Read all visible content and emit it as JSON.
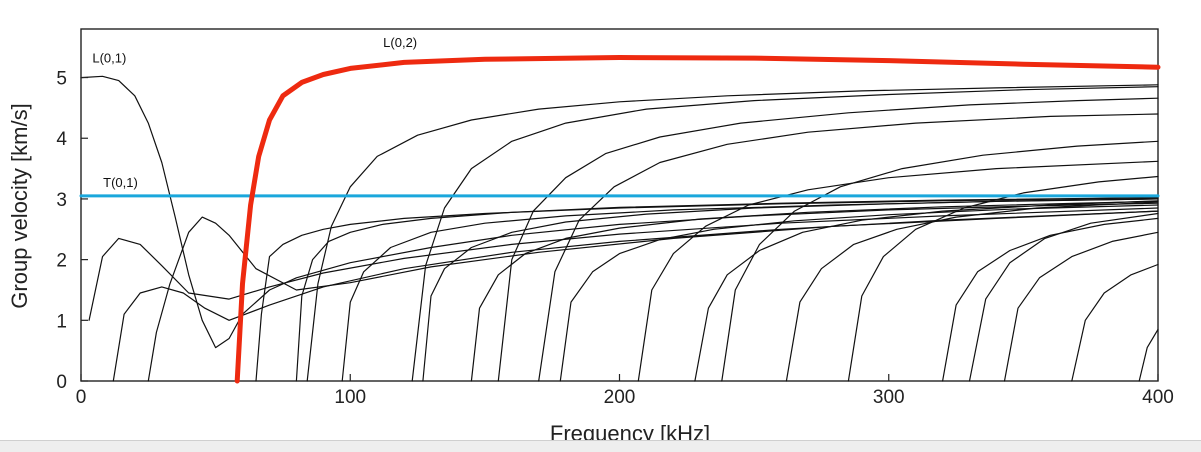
{
  "chart_data": {
    "type": "line",
    "xlabel": "Frequency [kHz]",
    "ylabel": "Group velocity [km/s]",
    "xlim": [
      0,
      400
    ],
    "ylim": [
      0,
      5.8
    ],
    "xticks": [
      0,
      100,
      200,
      300,
      400
    ],
    "yticks": [
      0,
      1,
      2,
      3,
      4,
      5
    ],
    "grid": false,
    "colors": {
      "L(0,2)": "#ee2a10",
      "T(0,1)": "#1aa7dc",
      "other_modes": "#111111"
    },
    "series": [
      {
        "name": "L(0,1)",
        "x": [
          0,
          8,
          14,
          20,
          25,
          30,
          35,
          40,
          45,
          50,
          55,
          60,
          70,
          80,
          100,
          130,
          160,
          200,
          250,
          300,
          350,
          400
        ],
        "y": [
          5.0,
          5.02,
          4.95,
          4.7,
          4.25,
          3.6,
          2.7,
          1.75,
          1.0,
          0.55,
          0.7,
          1.1,
          1.5,
          1.7,
          1.95,
          2.2,
          2.4,
          2.58,
          2.72,
          2.82,
          2.88,
          2.93
        ]
      },
      {
        "name": "L(0,2)",
        "x": [
          58,
          60,
          63,
          66,
          70,
          75,
          82,
          90,
          100,
          120,
          150,
          200,
          250,
          300,
          350,
          400
        ],
        "y": [
          0,
          1.6,
          2.9,
          3.7,
          4.3,
          4.7,
          4.92,
          5.05,
          5.15,
          5.25,
          5.3,
          5.33,
          5.32,
          5.28,
          5.22,
          5.17
        ]
      },
      {
        "name": "T(0,1)",
        "x": [
          0,
          400
        ],
        "y": [
          3.05,
          3.05
        ]
      },
      {
        "x": [
          3,
          8,
          14,
          22,
          30,
          40,
          55,
          70,
          90,
          120,
          160,
          200,
          260,
          320,
          400
        ],
        "y": [
          1.0,
          2.05,
          2.35,
          2.25,
          1.9,
          1.45,
          1.35,
          1.55,
          1.78,
          2.02,
          2.25,
          2.42,
          2.6,
          2.72,
          2.85
        ]
      },
      {
        "x": [
          12,
          16,
          22,
          30,
          38,
          46,
          55,
          70,
          90,
          120,
          160,
          200,
          260,
          320,
          400
        ],
        "y": [
          0,
          1.1,
          1.45,
          1.55,
          1.45,
          1.2,
          1.0,
          1.25,
          1.55,
          1.85,
          2.12,
          2.3,
          2.5,
          2.65,
          2.8
        ]
      },
      {
        "x": [
          25,
          28,
          33,
          40,
          45,
          50,
          55,
          65,
          80,
          100,
          130,
          170,
          220,
          280,
          340,
          400
        ],
        "y": [
          0,
          0.8,
          1.6,
          2.45,
          2.7,
          2.6,
          2.4,
          1.85,
          1.5,
          1.62,
          1.88,
          2.12,
          2.35,
          2.55,
          2.68,
          2.8
        ]
      },
      {
        "x": [
          65,
          67,
          70,
          75,
          82,
          90,
          100,
          120,
          150,
          200,
          260,
          320,
          400
        ],
        "y": [
          0,
          1.1,
          2.05,
          2.25,
          2.4,
          2.5,
          2.58,
          2.68,
          2.76,
          2.85,
          2.92,
          2.97,
          3.02
        ]
      },
      {
        "x": [
          80,
          82,
          86,
          92,
          100,
          112,
          130,
          160,
          200,
          260,
          320,
          400
        ],
        "y": [
          0,
          1.4,
          2.0,
          2.3,
          2.45,
          2.58,
          2.68,
          2.78,
          2.86,
          2.93,
          2.98,
          3.02
        ]
      },
      {
        "x": [
          97,
          100,
          105,
          115,
          130,
          150,
          180,
          220,
          280,
          340,
          400
        ],
        "y": [
          0,
          1.3,
          1.8,
          2.2,
          2.45,
          2.6,
          2.72,
          2.82,
          2.9,
          2.96,
          3.0
        ]
      },
      {
        "x": [
          84,
          88,
          93,
          100,
          110,
          125,
          145,
          170,
          200,
          240,
          290,
          340,
          400
        ],
        "y": [
          0,
          1.6,
          2.55,
          3.2,
          3.7,
          4.05,
          4.3,
          4.48,
          4.6,
          4.7,
          4.78,
          4.83,
          4.88
        ]
      },
      {
        "x": [
          127,
          130,
          135,
          145,
          160,
          180,
          210,
          250,
          300,
          350,
          400
        ],
        "y": [
          0,
          1.4,
          1.85,
          2.2,
          2.45,
          2.62,
          2.75,
          2.85,
          2.92,
          2.97,
          3.0
        ]
      },
      {
        "x": [
          123,
          128,
          135,
          145,
          160,
          180,
          210,
          250,
          300,
          350,
          400
        ],
        "y": [
          0,
          1.9,
          2.85,
          3.5,
          3.95,
          4.25,
          4.48,
          4.62,
          4.72,
          4.8,
          4.85
        ]
      },
      {
        "x": [
          145,
          148,
          155,
          165,
          180,
          200,
          230,
          270,
          320,
          370,
          400
        ],
        "y": [
          0,
          1.2,
          1.75,
          2.1,
          2.35,
          2.52,
          2.67,
          2.78,
          2.87,
          2.93,
          2.96
        ]
      },
      {
        "x": [
          155,
          160,
          168,
          180,
          195,
          215,
          245,
          285,
          330,
          370,
          400
        ],
        "y": [
          0,
          2.0,
          2.8,
          3.35,
          3.75,
          4.02,
          4.25,
          4.42,
          4.55,
          4.62,
          4.66
        ]
      },
      {
        "x": [
          178,
          182,
          190,
          200,
          215,
          235,
          265,
          300,
          345,
          400
        ],
        "y": [
          0,
          1.3,
          1.8,
          2.1,
          2.33,
          2.5,
          2.64,
          2.74,
          2.83,
          2.9
        ]
      },
      {
        "x": [
          170,
          176,
          185,
          198,
          215,
          240,
          270,
          310,
          360,
          400
        ],
        "y": [
          0,
          1.8,
          2.65,
          3.2,
          3.6,
          3.9,
          4.1,
          4.25,
          4.36,
          4.4
        ]
      },
      {
        "x": [
          207,
          212,
          220,
          232,
          248,
          270,
          300,
          340,
          400
        ],
        "y": [
          0,
          1.5,
          2.1,
          2.55,
          2.9,
          3.15,
          3.35,
          3.5,
          3.62
        ]
      },
      {
        "x": [
          228,
          233,
          240,
          252,
          268,
          290,
          320,
          360,
          400
        ],
        "y": [
          0,
          1.2,
          1.75,
          2.15,
          2.45,
          2.65,
          2.8,
          2.9,
          2.97
        ]
      },
      {
        "x": [
          238,
          243,
          252,
          265,
          282,
          305,
          335,
          370,
          400
        ],
        "y": [
          0,
          1.5,
          2.25,
          2.8,
          3.2,
          3.5,
          3.72,
          3.87,
          3.95
        ]
      },
      {
        "x": [
          262,
          267,
          275,
          287,
          303,
          325,
          355,
          400
        ],
        "y": [
          0,
          1.3,
          1.85,
          2.25,
          2.5,
          2.7,
          2.85,
          2.95
        ]
      },
      {
        "x": [
          285,
          290,
          298,
          310,
          328,
          350,
          378,
          400
        ],
        "y": [
          0,
          1.4,
          2.05,
          2.5,
          2.85,
          3.1,
          3.28,
          3.37
        ]
      },
      {
        "x": [
          320,
          325,
          333,
          345,
          360,
          380,
          400
        ],
        "y": [
          0,
          1.25,
          1.8,
          2.15,
          2.4,
          2.58,
          2.68
        ]
      },
      {
        "x": [
          343,
          348,
          356,
          368,
          383,
          400
        ],
        "y": [
          0,
          1.2,
          1.7,
          2.05,
          2.3,
          2.45
        ]
      },
      {
        "x": [
          330,
          336,
          345,
          358,
          375,
          400
        ],
        "y": [
          0,
          1.35,
          1.95,
          2.35,
          2.6,
          2.76
        ]
      },
      {
        "x": [
          368,
          373,
          380,
          390,
          400
        ],
        "y": [
          0,
          1.0,
          1.45,
          1.75,
          1.92
        ]
      },
      {
        "x": [
          393,
          396,
          400
        ],
        "y": [
          0,
          0.55,
          0.85
        ]
      }
    ]
  }
}
